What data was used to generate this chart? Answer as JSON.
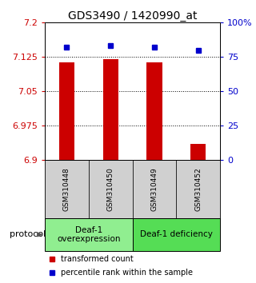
{
  "title": "GDS3490 / 1420990_at",
  "samples": [
    "GSM310448",
    "GSM310450",
    "GSM310449",
    "GSM310452"
  ],
  "bar_values": [
    7.113,
    7.12,
    7.113,
    6.935
  ],
  "percentile_values": [
    82,
    83,
    82,
    80
  ],
  "y_min": 6.9,
  "y_max": 7.2,
  "y_ticks": [
    6.9,
    6.975,
    7.05,
    7.125,
    7.2
  ],
  "y_tick_labels": [
    "6.9",
    "6.975",
    "7.05",
    "7.125",
    "7.2"
  ],
  "y2_ticks": [
    0,
    25,
    50,
    75,
    100
  ],
  "y2_tick_labels": [
    "0",
    "25",
    "50",
    "75",
    "100%"
  ],
  "bar_color": "#cc0000",
  "dot_color": "#0000cc",
  "bar_width": 0.35,
  "groups": [
    {
      "label": "Deaf-1\noverexpression",
      "indices": [
        0,
        1
      ],
      "color": "#90ee90"
    },
    {
      "label": "Deaf-1 deficiency",
      "indices": [
        2,
        3
      ],
      "color": "#55dd55"
    }
  ],
  "protocol_label": "protocol",
  "legend_bar_label": "transformed count",
  "legend_dot_label": "percentile rank within the sample",
  "bar_axis_color": "#cc0000",
  "pct_axis_color": "#0000cc",
  "sample_box_color": "#d0d0d0",
  "title_fontsize": 10,
  "tick_fontsize": 8,
  "sample_fontsize": 6.5,
  "group_fontsize": 7.5,
  "legend_fontsize": 7,
  "protocol_fontsize": 8
}
